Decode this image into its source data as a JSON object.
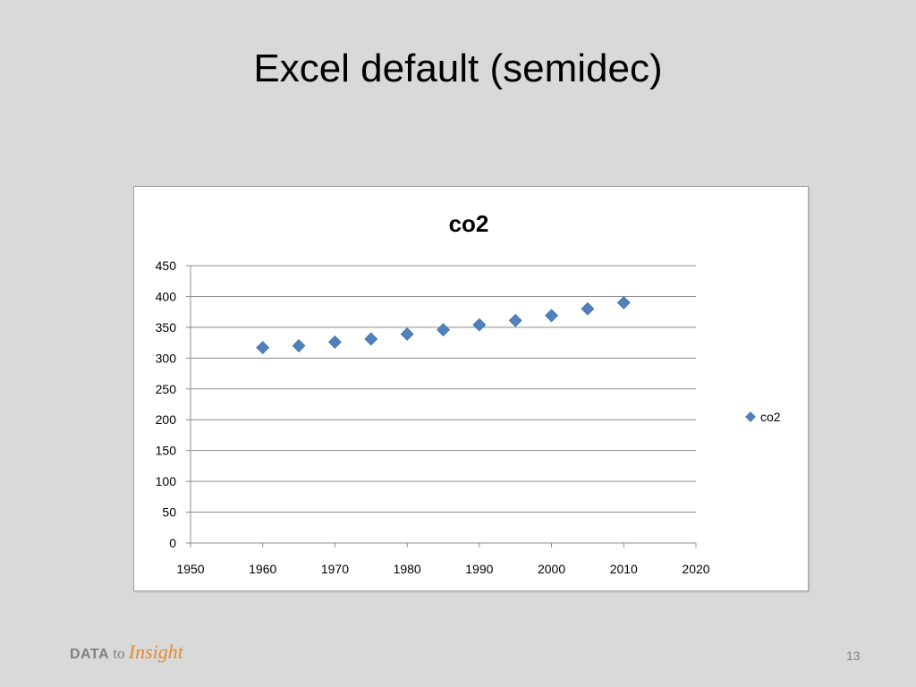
{
  "slide": {
    "title": "Excel default (semidec)",
    "page_number": "13",
    "brand": {
      "part1": "DATA",
      "part2": "to",
      "part3": "Insight"
    }
  },
  "colors": {
    "background": "#d9d9d9",
    "marker": "#4f81bd",
    "grid": "#8c8c8c",
    "brand_accent": "#e48a2e"
  },
  "chart_data": {
    "type": "scatter",
    "title": "co2",
    "xlabel": "",
    "ylabel": "",
    "xlim": [
      1950,
      2020
    ],
    "ylim": [
      0,
      450
    ],
    "xticks": [
      "1950",
      "1960",
      "1970",
      "1980",
      "1990",
      "2000",
      "2010",
      "2020"
    ],
    "yticks": [
      "0",
      "50",
      "100",
      "150",
      "200",
      "250",
      "300",
      "350",
      "400",
      "450"
    ],
    "grid": "horizontal",
    "legend_position": "right",
    "series": [
      {
        "name": "co2",
        "marker": "diamond",
        "x": [
          1960,
          1965,
          1970,
          1975,
          1980,
          1985,
          1990,
          1995,
          2000,
          2005,
          2010
        ],
        "y": [
          317,
          320,
          326,
          331,
          339,
          346,
          354,
          361,
          369,
          380,
          390
        ]
      }
    ]
  }
}
